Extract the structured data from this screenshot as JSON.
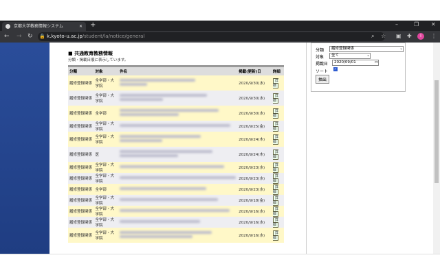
{
  "browser": {
    "tab_title": "京都大学教務情報システム",
    "url_host": "k.kyoto-u.ac.jp",
    "url_path": "/student/la/notice/general",
    "profile_initial": "I"
  },
  "page": {
    "title": "共通教育教務情報",
    "subtitle": "分類・掲載日順に表示しています。",
    "columns": [
      "分類",
      "対象",
      "件名",
      "掲載(更新)日",
      "詳細"
    ],
    "rows": [
      {
        "category": "履修登録関係",
        "target": "全学部・大学院",
        "date": "2020/9/30(水)",
        "tall": true
      },
      {
        "category": "履修登録関係",
        "target": "全学部・大学院",
        "date": "2020/9/30(水)",
        "tall": true
      },
      {
        "category": "履修登録関係",
        "target": "全学部",
        "date": "2020/9/30(水)",
        "tall": true
      },
      {
        "category": "履修登録関係",
        "target": "全学部・大学院",
        "date": "2020/9/25(金)"
      },
      {
        "category": "履修登録関係",
        "target": "全学部・大学院",
        "date": "2020/9/24(木)",
        "tall": true
      },
      {
        "category": "履修登録関係",
        "target": "医",
        "date": "2020/9/24(木)",
        "tall": true
      },
      {
        "category": "履修登録関係",
        "target": "全学部・大学院",
        "date": "2020/9/23(水)"
      },
      {
        "category": "履修登録関係",
        "target": "全学部・大学院",
        "date": "2020/9/23(水)"
      },
      {
        "category": "履修登録関係",
        "target": "全学部",
        "date": "2020/9/23(水)"
      },
      {
        "category": "履修登録関係",
        "target": "全学部・大学院",
        "date": "2020/9/18(金)"
      },
      {
        "category": "履修登録関係",
        "target": "全学部・大学院",
        "date": "2020/9/16(水)"
      },
      {
        "category": "履修登録関係",
        "target": "全学部・大学院",
        "date": "2020/9/16(水)"
      },
      {
        "category": "履修登録関係",
        "target": "全学部・大学院",
        "date": "2020/9/16(水)",
        "tall": true
      }
    ],
    "detail_label": "詳細"
  },
  "filter": {
    "category_label": "分類",
    "category_value": "履修登録関係",
    "target_label": "対象",
    "target_value": "全て",
    "date_label": "掲載日",
    "date_value": "2020/09/01",
    "sort_label": "ソート",
    "sort_checked": true,
    "submit_label": "抽出"
  }
}
